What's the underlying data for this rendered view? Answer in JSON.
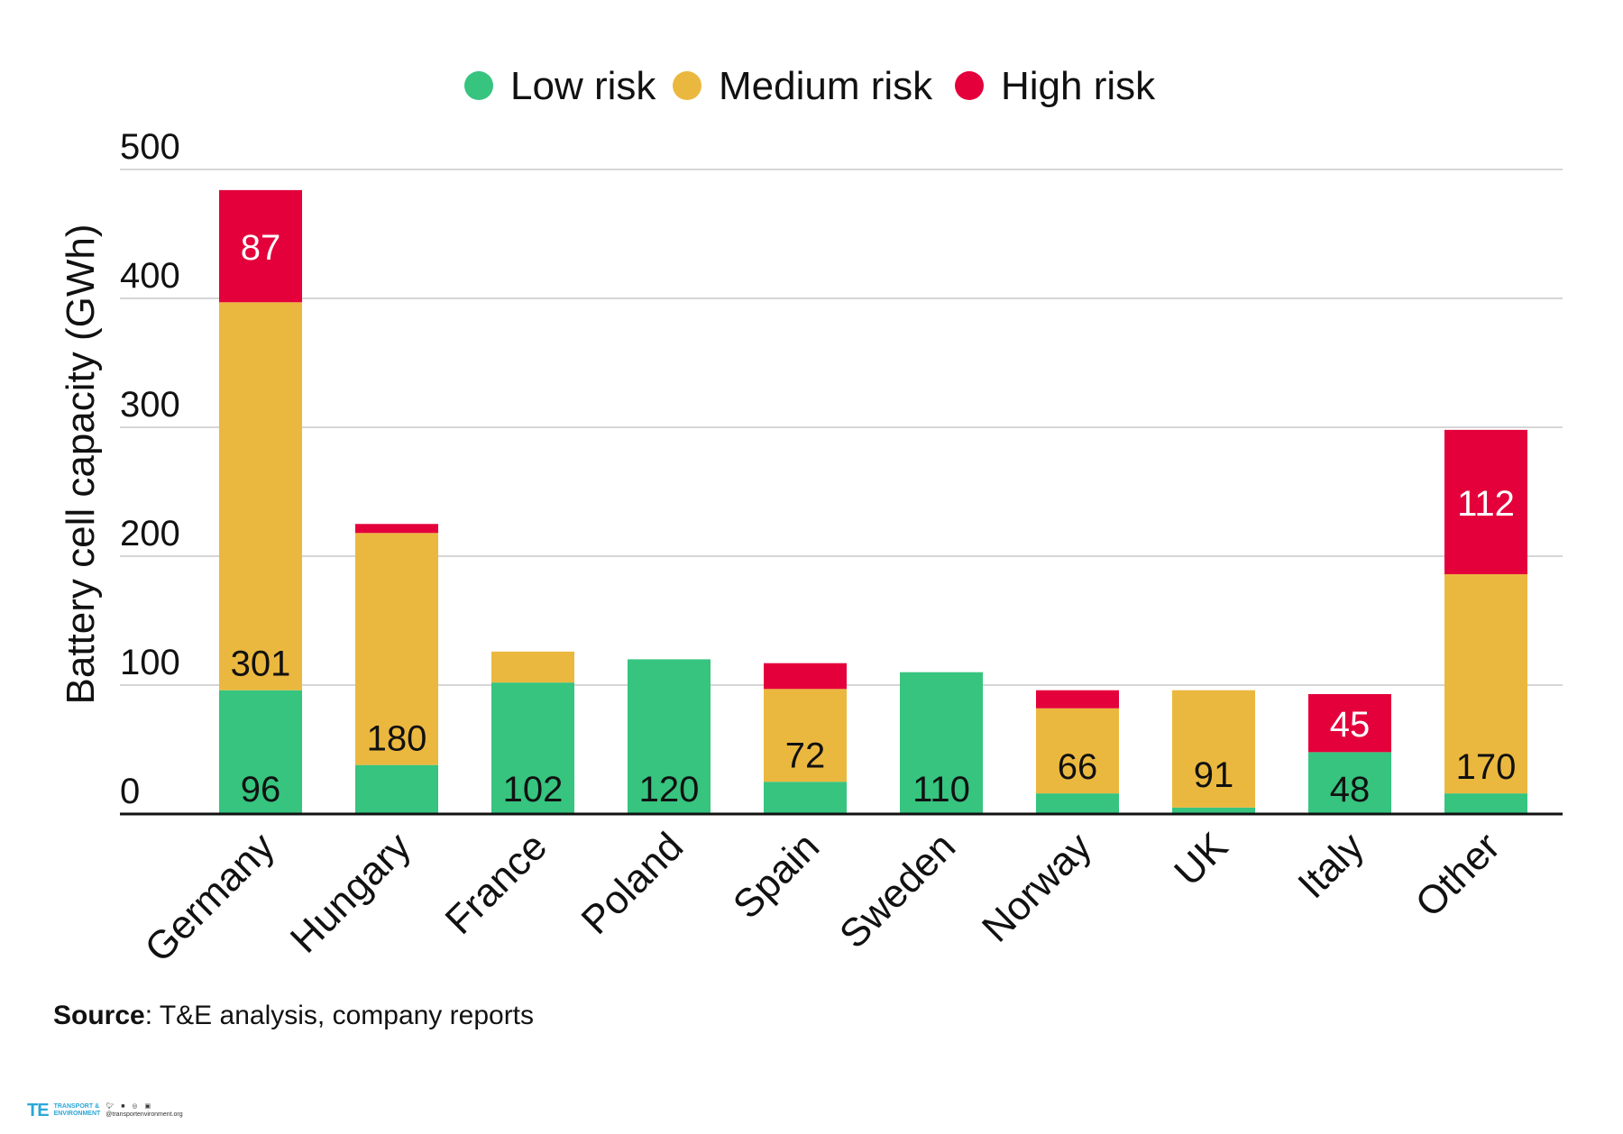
{
  "chart_data": {
    "type": "bar",
    "stacked": true,
    "ylabel": "Battery cell capacity (GWh)",
    "xlabel": "",
    "ylim": [
      0,
      500
    ],
    "yticks": [
      0,
      100,
      200,
      300,
      400,
      500
    ],
    "grid": true,
    "legend_position": "top-center",
    "categories": [
      "Germany",
      "Hungary",
      "France",
      "Poland",
      "Spain",
      "Sweden",
      "Norway",
      "UK",
      "Italy",
      "Other"
    ],
    "series": [
      {
        "name": "Low risk",
        "color": "#36c47f",
        "values": [
          96,
          38,
          102,
          120,
          25,
          110,
          16,
          5,
          48,
          16
        ],
        "labels": [
          "96",
          "",
          "102",
          "120",
          "",
          "110",
          "",
          "",
          "48",
          ""
        ]
      },
      {
        "name": "Medium risk",
        "color": "#ebb83f",
        "values": [
          301,
          180,
          24,
          0,
          72,
          0,
          66,
          91,
          0,
          170
        ],
        "labels": [
          "301",
          "180",
          "",
          "",
          "72",
          "",
          "66",
          "91",
          "",
          "170"
        ]
      },
      {
        "name": "High risk",
        "color": "#e4003b",
        "values": [
          87,
          7,
          0,
          0,
          20,
          0,
          14,
          0,
          45,
          112
        ],
        "labels": [
          "87",
          "",
          "",
          "",
          "",
          "",
          "",
          "",
          "45",
          "112"
        ]
      }
    ]
  },
  "source": {
    "label": "Source",
    "text": ": T&E analysis, company reports"
  },
  "footer": {
    "logo_mark": "TE",
    "logo_line1": "TRANSPORT &",
    "logo_line2": "ENVIRONMENT",
    "website": "@transportenvironment.org"
  }
}
